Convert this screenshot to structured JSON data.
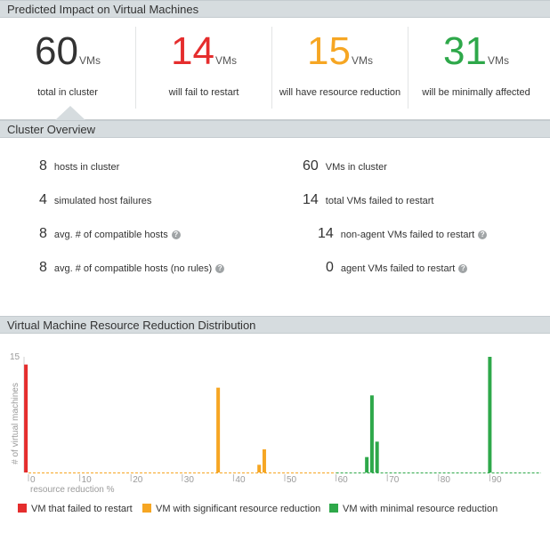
{
  "impact": {
    "title": "Predicted Impact on Virtual Machines",
    "unit": "VMs",
    "items": [
      {
        "value": "60",
        "label": "total in cluster",
        "color": "#333333"
      },
      {
        "value": "14",
        "label": "will fail to restart",
        "color": "#e52d2d"
      },
      {
        "value": "15",
        "label": "will have resource reduction",
        "color": "#f6a623"
      },
      {
        "value": "31",
        "label": "will be minimally affected",
        "color": "#2ea84a"
      }
    ]
  },
  "overview": {
    "title": "Cluster Overview",
    "help_icon": "question-circle-icon",
    "left": [
      {
        "value": "8",
        "label": "hosts in cluster",
        "help": false
      },
      {
        "value": "4",
        "label": "simulated host failures",
        "help": false
      },
      {
        "value": "8",
        "label": "avg. # of compatible hosts",
        "help": true
      },
      {
        "value": "8",
        "label": "avg. # of compatible hosts (no rules)",
        "help": true
      }
    ],
    "right": [
      {
        "value": "60",
        "label": "VMs in cluster",
        "help": false
      },
      {
        "value": "14",
        "label": "total VMs failed to restart",
        "help": false
      },
      {
        "value": "14",
        "label": "non-agent VMs failed to restart",
        "help": true
      },
      {
        "value": "0",
        "label": "agent VMs failed to restart",
        "help": true
      }
    ]
  },
  "distribution": {
    "title": "Virtual Machine Resource Reduction Distribution"
  },
  "chart_data": {
    "type": "bar",
    "xlabel": "resource reduction %",
    "ylabel": "# of virtual machines",
    "xlim": [
      0,
      100
    ],
    "ylim": [
      0,
      15
    ],
    "x_ticks": [
      0,
      10,
      20,
      30,
      40,
      50,
      60,
      70,
      80,
      90
    ],
    "y_ticks": [
      15
    ],
    "legend_position": "bottom",
    "series": [
      {
        "name": "VM that failed to restart",
        "color": "#e52d2d",
        "points": [
          {
            "x": -0.5,
            "y": 14
          }
        ]
      },
      {
        "name": "VM with significant resource reduction",
        "color": "#f6a623",
        "points": [
          {
            "x": 37,
            "y": 11
          },
          {
            "x": 45,
            "y": 1
          },
          {
            "x": 46,
            "y": 3
          }
        ]
      },
      {
        "name": "VM with minimal resource reduction",
        "color": "#2ea84a",
        "points": [
          {
            "x": 66,
            "y": 2
          },
          {
            "x": 67,
            "y": 10
          },
          {
            "x": 68,
            "y": 4
          },
          {
            "x": 90,
            "y": 15
          }
        ]
      }
    ]
  }
}
